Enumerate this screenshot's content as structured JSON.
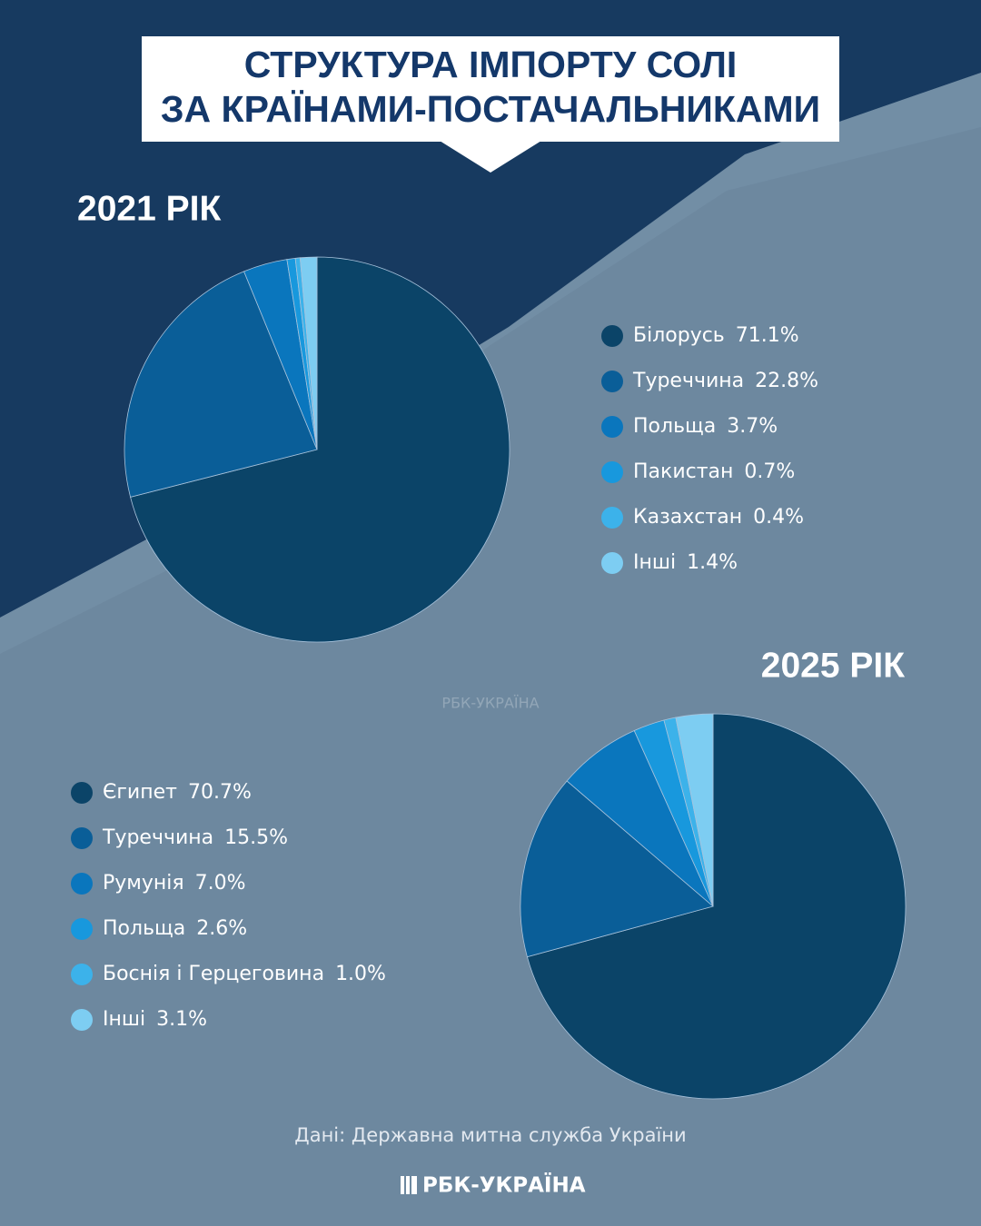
{
  "title": [
    "СТРУКТУРА ІМПОРТУ СОЛІ",
    "ЗА КРАЇНАМИ-ПОСТАЧАЛЬНИКАМИ"
  ],
  "source": "Дані: Державна митна служба України",
  "brand": "РБК-УКРАЇНА",
  "chart_data": [
    {
      "type": "pie",
      "title": "2021 РІК",
      "categories": [
        "Білорусь",
        "Туреччина",
        "Польща",
        "Пакистан",
        "Казахстан",
        "Інші"
      ],
      "values": [
        71.1,
        22.8,
        3.7,
        0.7,
        0.4,
        1.4
      ],
      "value_labels": [
        "71.1%",
        "22.8%",
        "3.7%",
        "0.7%",
        "0.4%",
        "1.4%"
      ],
      "colors": [
        "#0b4468",
        "#0a5e98",
        "#0a76bd",
        "#1898dd",
        "#3cb2ea",
        "#7dcdf2"
      ]
    },
    {
      "type": "pie",
      "title": "2025 РІК",
      "categories": [
        "Єгипет",
        "Туреччина",
        "Румунія",
        "Польща",
        "Боснія і Герцеговина",
        "Інші"
      ],
      "values": [
        70.7,
        15.5,
        7.0,
        2.6,
        1.0,
        3.1
      ],
      "value_labels": [
        "70.7%",
        "15.5%",
        "7.0%",
        "2.6%",
        "1.0%",
        "3.1%"
      ],
      "colors": [
        "#0b4468",
        "#0a5e98",
        "#0a76bd",
        "#1898dd",
        "#3cb2ea",
        "#7dcdf2"
      ]
    }
  ]
}
